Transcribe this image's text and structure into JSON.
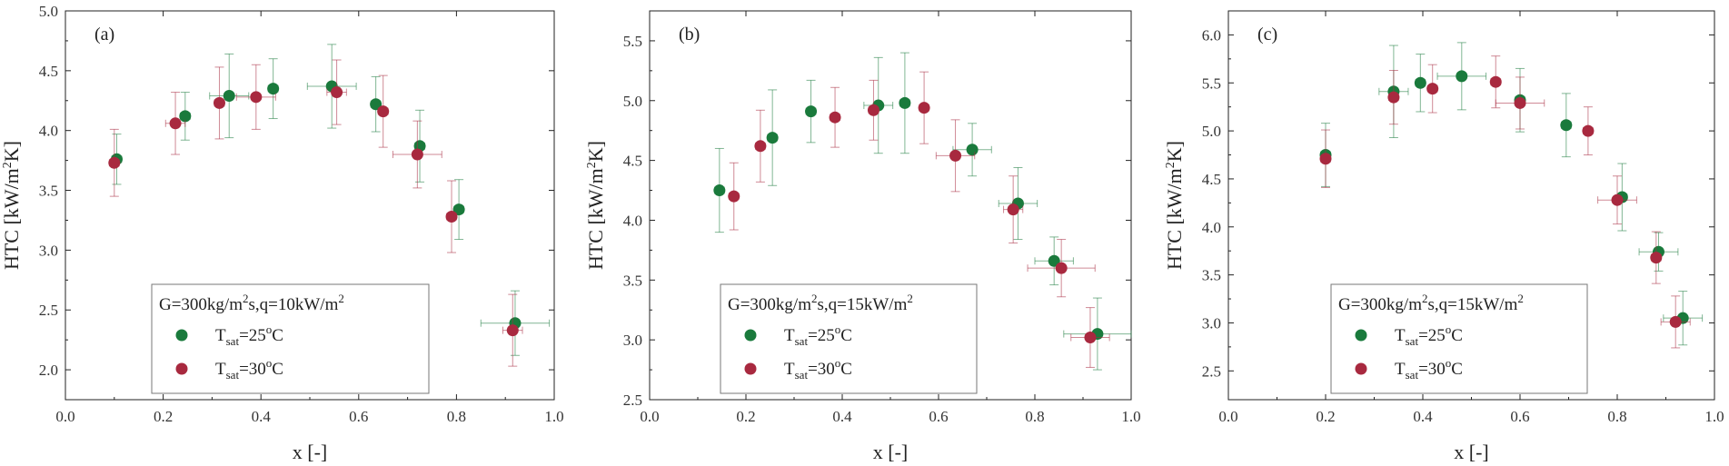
{
  "figure": {
    "x_label": "x [-]",
    "y_label": "HTC [kW/m2K]",
    "y_label_parts": {
      "before": "HTC [kW/m",
      "sup": "2",
      "after": "K]"
    }
  },
  "chart_data": [
    {
      "type": "scatter",
      "panel_label": "(a)",
      "legend_title": "G=300kg/m2s,q=10kW/m2",
      "legend_title_parts": {
        "t1": "G=300kg/m",
        "s1": "2",
        "t2": "s,q=10kW/m",
        "s2": "2"
      },
      "xlabel": "x [-]",
      "ylabel": "HTC [kW/m2K]",
      "xlim": [
        0.0,
        1.0
      ],
      "ylim": [
        1.75,
        5.0
      ],
      "xticks": [
        "0.0",
        "0.2",
        "0.4",
        "0.6",
        "0.8",
        "1.0"
      ],
      "yticks": [
        "2.0",
        "2.5",
        "3.0",
        "3.5",
        "4.0",
        "4.5",
        "5.0"
      ],
      "ytick_values": [
        2.0,
        2.5,
        3.0,
        3.5,
        4.0,
        4.5,
        5.0
      ],
      "legend_position": "lower-center",
      "grid": false,
      "series": [
        {
          "name": "Tsat=25oC",
          "name_parts": {
            "t": "T",
            "sub": "sat",
            "m": "=25",
            "sup": "o",
            "e": "C"
          },
          "color": "#1a7a3c",
          "points": [
            {
              "x": 0.105,
              "y": 3.76,
              "xerr": 0.01,
              "yerr": 0.21
            },
            {
              "x": 0.245,
              "y": 4.12,
              "xerr": 0.01,
              "yerr": 0.2
            },
            {
              "x": 0.335,
              "y": 4.29,
              "xerr": 0.04,
              "yerr": 0.35
            },
            {
              "x": 0.425,
              "y": 4.35,
              "xerr": 0.01,
              "yerr": 0.25
            },
            {
              "x": 0.545,
              "y": 4.37,
              "xerr": 0.05,
              "yerr": 0.35
            },
            {
              "x": 0.635,
              "y": 4.22,
              "xerr": 0.01,
              "yerr": 0.23
            },
            {
              "x": 0.725,
              "y": 3.87,
              "xerr": 0.01,
              "yerr": 0.3
            },
            {
              "x": 0.805,
              "y": 3.34,
              "xerr": 0.01,
              "yerr": 0.25
            },
            {
              "x": 0.92,
              "y": 2.39,
              "xerr": 0.07,
              "yerr": 0.27
            }
          ]
        },
        {
          "name": "Tsat=30oC",
          "name_parts": {
            "t": "T",
            "sub": "sat",
            "m": "=30",
            "sup": "o",
            "e": "C"
          },
          "color": "#a8293f",
          "points": [
            {
              "x": 0.1,
              "y": 3.73,
              "xerr": 0.01,
              "yerr": 0.28
            },
            {
              "x": 0.225,
              "y": 4.06,
              "xerr": 0.02,
              "yerr": 0.26
            },
            {
              "x": 0.315,
              "y": 4.23,
              "xerr": 0.01,
              "yerr": 0.3
            },
            {
              "x": 0.39,
              "y": 4.28,
              "xerr": 0.04,
              "yerr": 0.27
            },
            {
              "x": 0.555,
              "y": 4.32,
              "xerr": 0.02,
              "yerr": 0.27
            },
            {
              "x": 0.65,
              "y": 4.16,
              "xerr": 0.01,
              "yerr": 0.3
            },
            {
              "x": 0.72,
              "y": 3.8,
              "xerr": 0.05,
              "yerr": 0.28
            },
            {
              "x": 0.79,
              "y": 3.28,
              "xerr": 0.01,
              "yerr": 0.3
            },
            {
              "x": 0.915,
              "y": 2.33,
              "xerr": 0.02,
              "yerr": 0.3
            }
          ]
        }
      ]
    },
    {
      "type": "scatter",
      "panel_label": "(b)",
      "legend_title": "G=300kg/m2s,q=15kW/m2",
      "legend_title_parts": {
        "t1": "G=300kg/m",
        "s1": "2",
        "t2": "s,q=15kW/m",
        "s2": "2"
      },
      "xlabel": "x [-]",
      "ylabel": "HTC [kW/m2K]",
      "xlim": [
        0.0,
        1.0
      ],
      "ylim": [
        2.5,
        5.75
      ],
      "xticks": [
        "0.0",
        "0.2",
        "0.4",
        "0.6",
        "0.8",
        "1.0"
      ],
      "yticks": [
        "2.5",
        "3.0",
        "3.5",
        "4.0",
        "4.5",
        "5.0",
        "5.5"
      ],
      "ytick_values": [
        2.5,
        3.0,
        3.5,
        4.0,
        4.5,
        5.0,
        5.5
      ],
      "legend_position": "lower-center",
      "grid": false,
      "series": [
        {
          "name": "Tsat=25oC",
          "name_parts": {
            "t": "T",
            "sub": "sat",
            "m": "=25",
            "sup": "o",
            "e": "C"
          },
          "color": "#1a7a3c",
          "points": [
            {
              "x": 0.145,
              "y": 4.25,
              "xerr": 0.01,
              "yerr": 0.35
            },
            {
              "x": 0.255,
              "y": 4.69,
              "xerr": 0.01,
              "yerr": 0.4
            },
            {
              "x": 0.335,
              "y": 4.91,
              "xerr": 0.01,
              "yerr": 0.26
            },
            {
              "x": 0.475,
              "y": 4.96,
              "xerr": 0.03,
              "yerr": 0.4
            },
            {
              "x": 0.53,
              "y": 4.98,
              "xerr": 0.01,
              "yerr": 0.42
            },
            {
              "x": 0.67,
              "y": 4.59,
              "xerr": 0.04,
              "yerr": 0.22
            },
            {
              "x": 0.765,
              "y": 4.14,
              "xerr": 0.04,
              "yerr": 0.3
            },
            {
              "x": 0.84,
              "y": 3.66,
              "xerr": 0.04,
              "yerr": 0.2
            },
            {
              "x": 0.93,
              "y": 3.05,
              "xerr": 0.07,
              "yerr": 0.3
            }
          ]
        },
        {
          "name": "Tsat=30oC",
          "name_parts": {
            "t": "T",
            "sub": "sat",
            "m": "=30",
            "sup": "o",
            "e": "C"
          },
          "color": "#a8293f",
          "points": [
            {
              "x": 0.175,
              "y": 4.2,
              "xerr": 0.01,
              "yerr": 0.28
            },
            {
              "x": 0.23,
              "y": 4.62,
              "xerr": 0.01,
              "yerr": 0.3
            },
            {
              "x": 0.385,
              "y": 4.86,
              "xerr": 0.01,
              "yerr": 0.25
            },
            {
              "x": 0.465,
              "y": 4.92,
              "xerr": 0.01,
              "yerr": 0.25
            },
            {
              "x": 0.57,
              "y": 4.94,
              "xerr": 0.01,
              "yerr": 0.3
            },
            {
              "x": 0.635,
              "y": 4.54,
              "xerr": 0.04,
              "yerr": 0.3
            },
            {
              "x": 0.755,
              "y": 4.09,
              "xerr": 0.02,
              "yerr": 0.28
            },
            {
              "x": 0.855,
              "y": 3.6,
              "xerr": 0.07,
              "yerr": 0.24
            },
            {
              "x": 0.915,
              "y": 3.02,
              "xerr": 0.04,
              "yerr": 0.25
            }
          ]
        }
      ]
    },
    {
      "type": "scatter",
      "panel_label": "(c)",
      "legend_title": "G=300kg/m2s,q=15kW/m2",
      "legend_title_parts": {
        "t1": "G=300kg/m",
        "s1": "2",
        "t2": "s,q=15kW/m",
        "s2": "2"
      },
      "xlabel": "x [-]",
      "ylabel": "HTC [kW/m2K]",
      "xlim": [
        0.0,
        1.0
      ],
      "ylim": [
        2.2,
        6.25
      ],
      "xticks": [
        "0.0",
        "0.2",
        "0.4",
        "0.6",
        "0.8",
        "1.0"
      ],
      "yticks": [
        "2.5",
        "3.0",
        "3.5",
        "4.0",
        "4.5",
        "5.0",
        "5.5",
        "6.0"
      ],
      "ytick_values": [
        2.5,
        3.0,
        3.5,
        4.0,
        4.5,
        5.0,
        5.5,
        6.0
      ],
      "legend_position": "lower-center",
      "grid": false,
      "series": [
        {
          "name": "Tsat=25oC",
          "name_parts": {
            "t": "T",
            "sub": "sat",
            "m": "=25",
            "sup": "o",
            "e": "C"
          },
          "color": "#1a7a3c",
          "points": [
            {
              "x": 0.2,
              "y": 4.75,
              "xerr": 0.01,
              "yerr": 0.33
            },
            {
              "x": 0.34,
              "y": 5.41,
              "xerr": 0.03,
              "yerr": 0.48
            },
            {
              "x": 0.395,
              "y": 5.5,
              "xerr": 0.01,
              "yerr": 0.3
            },
            {
              "x": 0.48,
              "y": 5.57,
              "xerr": 0.05,
              "yerr": 0.35
            },
            {
              "x": 0.6,
              "y": 5.32,
              "xerr": 0.01,
              "yerr": 0.33
            },
            {
              "x": 0.695,
              "y": 5.06,
              "xerr": 0.01,
              "yerr": 0.33
            },
            {
              "x": 0.81,
              "y": 4.31,
              "xerr": 0.01,
              "yerr": 0.35
            },
            {
              "x": 0.885,
              "y": 3.74,
              "xerr": 0.04,
              "yerr": 0.2
            },
            {
              "x": 0.935,
              "y": 3.05,
              "xerr": 0.04,
              "yerr": 0.28
            }
          ]
        },
        {
          "name": "Tsat=30oC",
          "name_parts": {
            "t": "T",
            "sub": "sat",
            "m": "=30",
            "sup": "o",
            "e": "C"
          },
          "color": "#a8293f",
          "points": [
            {
              "x": 0.2,
              "y": 4.71,
              "xerr": 0.01,
              "yerr": 0.3
            },
            {
              "x": 0.34,
              "y": 5.35,
              "xerr": 0.01,
              "yerr": 0.28
            },
            {
              "x": 0.42,
              "y": 5.44,
              "xerr": 0.01,
              "yerr": 0.25
            },
            {
              "x": 0.55,
              "y": 5.51,
              "xerr": 0.01,
              "yerr": 0.27
            },
            {
              "x": 0.6,
              "y": 5.29,
              "xerr": 0.05,
              "yerr": 0.27
            },
            {
              "x": 0.74,
              "y": 5.0,
              "xerr": 0.01,
              "yerr": 0.25
            },
            {
              "x": 0.8,
              "y": 4.28,
              "xerr": 0.04,
              "yerr": 0.25
            },
            {
              "x": 0.88,
              "y": 3.68,
              "xerr": 0.01,
              "yerr": 0.27
            },
            {
              "x": 0.92,
              "y": 3.01,
              "xerr": 0.03,
              "yerr": 0.27
            }
          ]
        }
      ]
    }
  ]
}
